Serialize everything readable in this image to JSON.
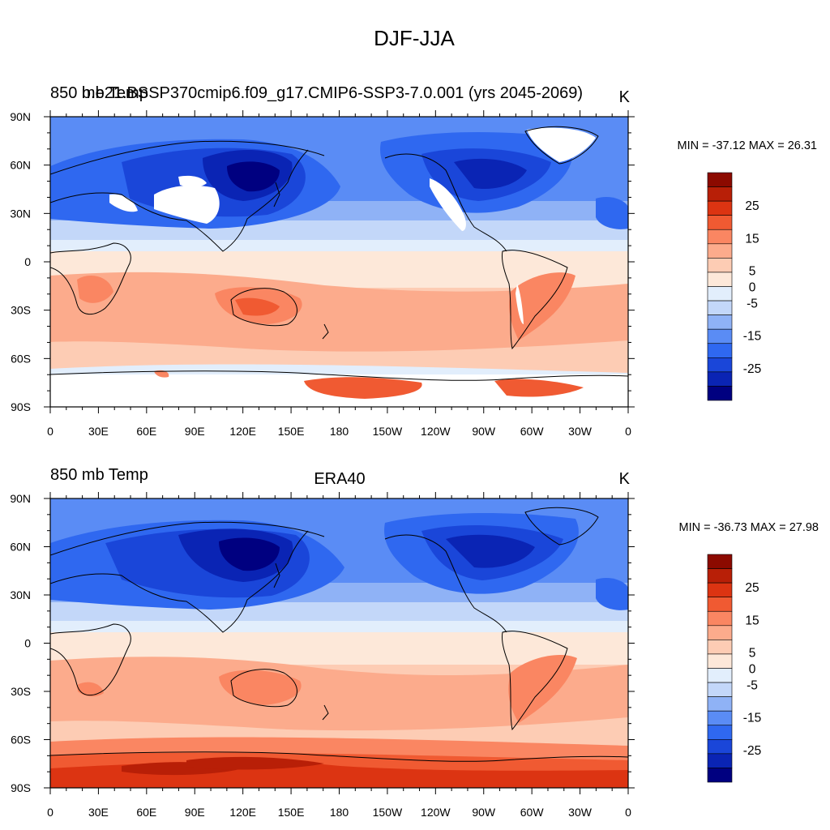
{
  "figure_title": "DJF-JJA",
  "chart_data": [
    {
      "type": "heatmap",
      "panel": "top",
      "left_title": "850 mb Temp",
      "center_title": "b.e21.BSSP370cmip6.f09_g17.CMIP6-SSP3-7.0.001 (yrs 2045-2069)",
      "units": "K",
      "stats": "MIN = -37.12 MAX =  26.31",
      "min": -37.12,
      "max": 26.31,
      "has_missing_values": true,
      "x_ticks": [
        "0",
        "30E",
        "60E",
        "90E",
        "120E",
        "150E",
        "180",
        "150W",
        "120W",
        "90W",
        "60W",
        "30W",
        "0"
      ],
      "y_ticks": [
        "90N",
        "60N",
        "30N",
        "0",
        "30S",
        "60S",
        "90S"
      ],
      "xlim": [
        0,
        360
      ],
      "ylim": [
        -90,
        90
      ]
    },
    {
      "type": "heatmap",
      "panel": "bottom",
      "left_title": "850 mb Temp",
      "center_title": "ERA40",
      "units": "K",
      "stats": "MIN = -36.73 MAX =  27.98",
      "min": -36.73,
      "max": 27.98,
      "has_missing_values": false,
      "x_ticks": [
        "0",
        "30E",
        "60E",
        "90E",
        "120E",
        "150E",
        "180",
        "150W",
        "120W",
        "90W",
        "60W",
        "30W",
        "0"
      ],
      "y_ticks": [
        "90N",
        "60N",
        "30N",
        "0",
        "30S",
        "60S",
        "90S"
      ],
      "xlim": [
        0,
        360
      ],
      "ylim": [
        -90,
        90
      ]
    }
  ],
  "colorbar": {
    "levels": [
      -30,
      -25,
      -20,
      -15,
      -10,
      -5,
      0,
      5,
      10,
      15,
      20,
      25,
      30
    ],
    "labels": [
      "25",
      "15",
      "5",
      "0",
      "-5",
      "-15",
      "-25"
    ],
    "label_values": [
      25,
      15,
      5,
      0,
      -5,
      -15,
      -25
    ],
    "colors": [
      "#000080",
      "#0a24b4",
      "#1a46d9",
      "#2f68f0",
      "#5a8cf5",
      "#8fb2f6",
      "#c3d7f9",
      "#e2eefc",
      "#fde8d9",
      "#fdccb4",
      "#fcab8c",
      "#fa8662",
      "#f05a32",
      "#dc3412",
      "#b81f07",
      "#8c0a00"
    ]
  }
}
